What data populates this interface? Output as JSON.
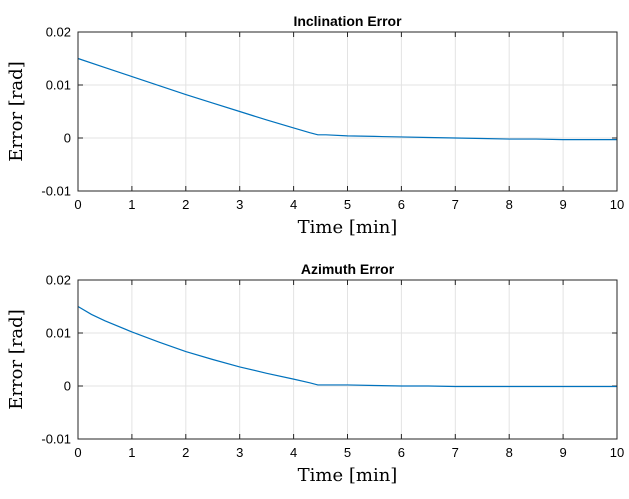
{
  "chart_data": [
    {
      "type": "line",
      "title": "Inclination Error",
      "xlabel": "Time [min]",
      "ylabel": "Error [rad]",
      "xlim": [
        0,
        10
      ],
      "ylim": [
        -0.01,
        0.02
      ],
      "xticks": [
        0,
        1,
        2,
        3,
        4,
        5,
        6,
        7,
        8,
        9,
        10
      ],
      "xtick_labels": [
        "0",
        "1",
        "2",
        "3",
        "4",
        "5",
        "6",
        "7",
        "8",
        "9",
        "10"
      ],
      "yticks": [
        -0.01,
        0,
        0.01,
        0.02
      ],
      "ytick_labels": [
        "-0.01",
        "0",
        "0.01",
        "0.02"
      ],
      "grid": true,
      "color": "#0072BD",
      "series": [
        {
          "x": [
            0,
            0.5,
            1,
            1.5,
            2,
            2.5,
            3,
            3.5,
            4,
            4.3,
            4.45,
            4.6,
            5,
            5.5,
            6,
            6.5,
            7,
            7.5,
            8,
            8.5,
            9,
            9.5,
            10
          ],
          "y": [
            0.015,
            0.0133,
            0.0116,
            0.0099,
            0.0082,
            0.0066,
            0.005,
            0.0034,
            0.0019,
            0.001,
            0.0006,
            0.0006,
            0.0004,
            0.0003,
            0.0002,
            0.0001,
            0.0,
            -0.0001,
            -0.0002,
            -0.0002,
            -0.0003,
            -0.0003,
            -0.0003
          ]
        }
      ]
    },
    {
      "type": "line",
      "title": "Azimuth Error",
      "xlabel": "Time [min]",
      "ylabel": "Error [rad]",
      "xlim": [
        0,
        10
      ],
      "ylim": [
        -0.01,
        0.02
      ],
      "xticks": [
        0,
        1,
        2,
        3,
        4,
        5,
        6,
        7,
        8,
        9,
        10
      ],
      "xtick_labels": [
        "0",
        "1",
        "2",
        "3",
        "4",
        "5",
        "6",
        "7",
        "8",
        "9",
        "10"
      ],
      "yticks": [
        -0.01,
        0,
        0.01,
        0.02
      ],
      "ytick_labels": [
        "-0.01",
        "0",
        "0.01",
        "0.02"
      ],
      "grid": true,
      "color": "#0072BD",
      "series": [
        {
          "x": [
            0,
            0.25,
            0.5,
            1,
            1.5,
            2,
            2.5,
            3,
            3.5,
            4,
            4.3,
            4.45,
            4.6,
            5,
            5.5,
            6,
            6.5,
            7,
            7.5,
            8,
            8.5,
            9,
            9.5,
            10
          ],
          "y": [
            0.015,
            0.0135,
            0.0123,
            0.0102,
            0.0083,
            0.0065,
            0.005,
            0.0036,
            0.0024,
            0.0013,
            0.0006,
            0.0002,
            0.0002,
            0.0002,
            0.0001,
            0.0,
            0.0,
            -0.0001,
            -0.0001,
            -0.0001,
            -0.0001,
            -0.0001,
            -0.0001,
            -0.0001
          ]
        }
      ]
    }
  ]
}
